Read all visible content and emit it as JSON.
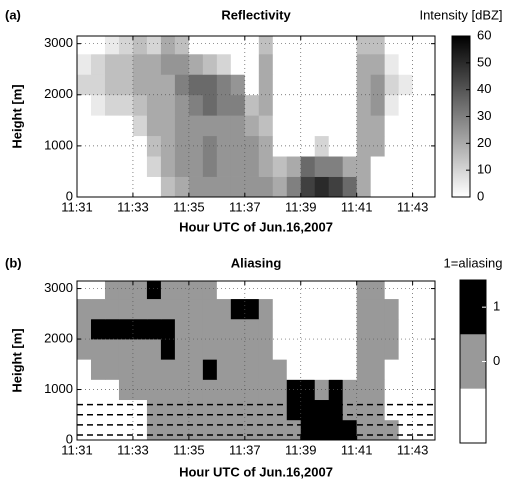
{
  "chart_data": [
    {
      "type": "heatmap",
      "panel": "(a)",
      "title": "Reflectivity",
      "xlabel": "Hour UTC of Jun.16,2007",
      "ylabel": "Height [m]",
      "colorbar_label": "Intensity [dBZ]",
      "colormap": "gray",
      "clim": [
        0,
        60
      ],
      "cticks": [
        0,
        10,
        20,
        30,
        40,
        50,
        60
      ],
      "xlim": [
        31,
        43.8
      ],
      "ylim": [
        0,
        3150
      ],
      "grid": true,
      "xticks": [
        {
          "value": 31,
          "label": "11:31"
        },
        {
          "value": 33,
          "label": "11:33"
        },
        {
          "value": 35,
          "label": "11:35"
        },
        {
          "value": 37,
          "label": "11:37"
        },
        {
          "value": 39,
          "label": "11:39"
        },
        {
          "value": 41,
          "label": "11:41"
        },
        {
          "value": 43,
          "label": "11:43"
        }
      ],
      "yticks": [
        0,
        1000,
        2000,
        3000
      ],
      "x": [
        31.25,
        31.75,
        32.25,
        32.75,
        33.25,
        33.75,
        34.25,
        34.75,
        35.25,
        35.75,
        36.25,
        36.75,
        37.25,
        37.75,
        38.25,
        38.75,
        39.25,
        39.75,
        40.25,
        40.75,
        41.25,
        41.75,
        42.25,
        42.75,
        43.25,
        43.75
      ],
      "y": [
        200,
        600,
        1000,
        1400,
        1800,
        2200,
        2600,
        3000
      ],
      "values": [
        [
          0,
          0,
          0,
          0,
          0,
          0,
          15,
          20,
          25,
          25,
          25,
          25,
          25,
          25,
          20,
          30,
          45,
          50,
          45,
          35,
          20,
          0,
          0,
          0,
          0,
          0
        ],
        [
          0,
          0,
          0,
          0,
          0,
          10,
          20,
          25,
          25,
          30,
          25,
          25,
          25,
          20,
          15,
          20,
          35,
          30,
          30,
          20,
          20,
          0,
          0,
          0,
          0,
          0
        ],
        [
          0,
          0,
          0,
          0,
          0,
          15,
          20,
          25,
          25,
          30,
          25,
          25,
          25,
          20,
          0,
          0,
          0,
          10,
          0,
          0,
          20,
          20,
          0,
          0,
          0,
          0
        ],
        [
          0,
          0,
          0,
          0,
          10,
          20,
          20,
          25,
          25,
          25,
          25,
          25,
          20,
          15,
          0,
          0,
          0,
          0,
          0,
          0,
          20,
          20,
          0,
          0,
          0,
          0
        ],
        [
          0,
          5,
          10,
          10,
          15,
          20,
          20,
          25,
          30,
          35,
          30,
          30,
          15,
          20,
          0,
          0,
          0,
          0,
          0,
          0,
          20,
          25,
          5,
          0,
          0,
          0
        ],
        [
          10,
          10,
          15,
          15,
          20,
          20,
          20,
          30,
          35,
          35,
          30,
          25,
          0,
          20,
          0,
          0,
          0,
          0,
          0,
          0,
          20,
          25,
          10,
          5,
          0,
          0
        ],
        [
          5,
          10,
          15,
          15,
          20,
          20,
          25,
          25,
          20,
          15,
          10,
          0,
          0,
          20,
          0,
          0,
          0,
          0,
          0,
          0,
          20,
          20,
          5,
          0,
          0,
          0
        ],
        [
          0,
          0,
          5,
          10,
          15,
          10,
          20,
          15,
          0,
          0,
          0,
          0,
          0,
          15,
          0,
          0,
          0,
          0,
          0,
          0,
          15,
          15,
          0,
          0,
          0,
          0
        ]
      ]
    },
    {
      "type": "heatmap",
      "panel": "(b)",
      "title": "Aliasing",
      "xlabel": "Hour UTC of Jun.16,2007",
      "ylabel": "Height [m]",
      "colorbar_label": "1=aliasing",
      "colormap": "bands",
      "colors": [
        "#ffffff",
        "#999999",
        "#000000"
      ],
      "clim": [
        -1.5,
        1.5
      ],
      "cticks": [
        0,
        1
      ],
      "xlim": [
        31,
        43.8
      ],
      "ylim": [
        0,
        3150
      ],
      "grid": true,
      "hlines": [
        700,
        500,
        300,
        100
      ],
      "xticks": [
        {
          "value": 31,
          "label": "11:31"
        },
        {
          "value": 33,
          "label": "11:33"
        },
        {
          "value": 35,
          "label": "11:35"
        },
        {
          "value": 37,
          "label": "11:37"
        },
        {
          "value": 39,
          "label": "11:39"
        },
        {
          "value": 41,
          "label": "11:41"
        },
        {
          "value": 43,
          "label": "11:43"
        }
      ],
      "yticks": [
        0,
        1000,
        2000,
        3000
      ],
      "x": [
        31.25,
        31.75,
        32.25,
        32.75,
        33.25,
        33.75,
        34.25,
        34.75,
        35.25,
        35.75,
        36.25,
        36.75,
        37.25,
        37.75,
        38.25,
        38.75,
        39.25,
        39.75,
        40.25,
        40.75,
        41.25,
        41.75,
        42.25,
        42.75,
        43.25,
        43.75
      ],
      "y": [
        200,
        600,
        1000,
        1400,
        1800,
        2200,
        2600,
        3000
      ],
      "values": [
        [
          null,
          null,
          null,
          null,
          null,
          0,
          0,
          0,
          0,
          0,
          0,
          0,
          0,
          0,
          0,
          0,
          1,
          1,
          1,
          1,
          0,
          0,
          0,
          null,
          null,
          null
        ],
        [
          null,
          null,
          null,
          null,
          null,
          0,
          0,
          0,
          0,
          0,
          0,
          0,
          0,
          0,
          0,
          1,
          1,
          1,
          1,
          0,
          0,
          0,
          null,
          null,
          null,
          null
        ],
        [
          null,
          null,
          null,
          0,
          0,
          0,
          0,
          0,
          0,
          0,
          0,
          0,
          0,
          0,
          0,
          1,
          1,
          0,
          1,
          0,
          0,
          0,
          null,
          null,
          null,
          null
        ],
        [
          null,
          0,
          0,
          0,
          0,
          0,
          0,
          0,
          0,
          1,
          0,
          0,
          0,
          0,
          0,
          null,
          null,
          null,
          null,
          null,
          0,
          0,
          null,
          null,
          null,
          null
        ],
        [
          0,
          0,
          0,
          0,
          0,
          0,
          1,
          0,
          0,
          0,
          0,
          0,
          0,
          0,
          null,
          null,
          null,
          null,
          null,
          null,
          0,
          0,
          0,
          null,
          null,
          null
        ],
        [
          0,
          1,
          1,
          1,
          1,
          1,
          1,
          0,
          0,
          0,
          0,
          0,
          0,
          0,
          null,
          null,
          null,
          null,
          null,
          null,
          0,
          0,
          0,
          null,
          null,
          null
        ],
        [
          0,
          0,
          0,
          0,
          0,
          0,
          0,
          0,
          0,
          0,
          0,
          1,
          1,
          0,
          null,
          null,
          null,
          null,
          null,
          null,
          0,
          0,
          0,
          null,
          null,
          null
        ],
        [
          null,
          null,
          0,
          0,
          0,
          1,
          0,
          0,
          0,
          0,
          null,
          null,
          null,
          null,
          null,
          null,
          null,
          null,
          null,
          null,
          0,
          0,
          null,
          null,
          null,
          null
        ]
      ]
    }
  ]
}
